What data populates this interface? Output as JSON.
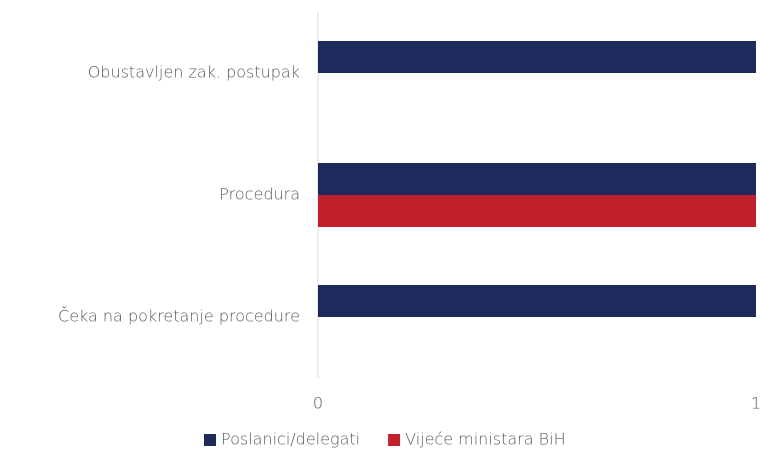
{
  "chart_data": {
    "type": "barh",
    "categories": [
      "Obustavljen zak. postupak",
      "Procedura",
      "Čeka na pokretanje procedure"
    ],
    "series": [
      {
        "name": "Poslanici/delegati",
        "color": "#1f2a5c",
        "values": [
          1,
          1,
          1
        ]
      },
      {
        "name": "Vijeće ministara BiH",
        "color": "#c0202a",
        "values": [
          null,
          1,
          null
        ]
      }
    ],
    "xlim": [
      0,
      1
    ],
    "xticks": [
      0,
      1
    ],
    "legend": "bottom"
  }
}
